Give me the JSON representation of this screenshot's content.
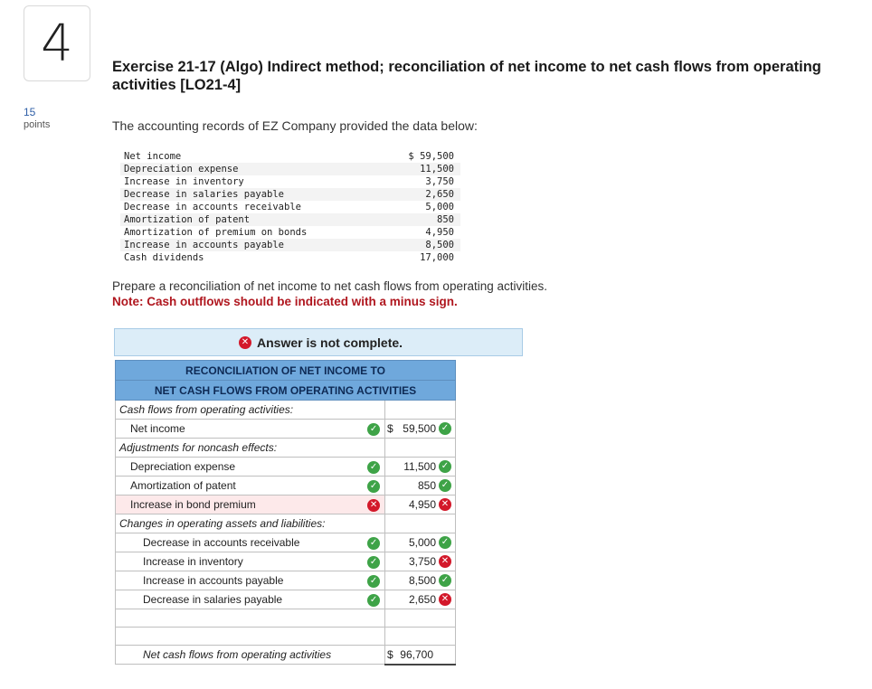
{
  "question": {
    "number": "4",
    "points_value": "15",
    "points_label": "points"
  },
  "exercise_title": "Exercise 21-17 (Algo) Indirect method; reconciliation of net income to net cash flows from operating activities [LO21-4]",
  "intro": "The accounting records of EZ Company provided the data below:",
  "data_rows": [
    {
      "label": "Net income",
      "value": "$ 59,500"
    },
    {
      "label": "Depreciation expense",
      "value": "11,500"
    },
    {
      "label": "Increase in inventory",
      "value": "3,750"
    },
    {
      "label": "Decrease in salaries payable",
      "value": "2,650"
    },
    {
      "label": "Decrease in accounts receivable",
      "value": "5,000"
    },
    {
      "label": "Amortization of patent",
      "value": "850"
    },
    {
      "label": "Amortization of premium on bonds",
      "value": "4,950"
    },
    {
      "label": "Increase in accounts payable",
      "value": "8,500"
    },
    {
      "label": "Cash dividends",
      "value": "17,000"
    }
  ],
  "prepare": "Prepare a reconciliation of net income to net cash flows from operating activities.",
  "note": "Note: Cash outflows should be indicated with a minus sign.",
  "answer_status": "Answer is not complete.",
  "recon": {
    "header_line1": "RECONCILIATION OF NET INCOME TO",
    "header_line2": "NET CASH FLOWS FROM OPERATING ACTIVITIES",
    "section_operating": "Cash flows from operating activities:",
    "net_income_label": "Net income",
    "net_income_dollar": "$",
    "net_income_amount": "59,500",
    "section_adjustments": "Adjustments for noncash effects:",
    "depreciation_label": "Depreciation expense",
    "depreciation_amount": "11,500",
    "patent_label": "Amortization of patent",
    "patent_amount": "850",
    "bond_label": "Increase in bond premium",
    "bond_amount": "4,950",
    "section_changes": "Changes in operating assets and liabilities:",
    "ar_label": "Decrease in accounts receivable",
    "ar_amount": "5,000",
    "inventory_label": "Increase in inventory",
    "inventory_amount": "3,750",
    "ap_label": "Increase in accounts payable",
    "ap_amount": "8,500",
    "salaries_label": "Decrease in salaries payable",
    "salaries_amount": "2,650",
    "total_label": "Net cash flows from operating activities",
    "total_dollar": "$",
    "total_amount": "96,700"
  },
  "colors": {
    "correct": "#3ea347",
    "incorrect": "#d3182a",
    "header_bg": "#6fa8dc",
    "answer_bar_bg": "#dcedf8",
    "note_color": "#b0171f"
  }
}
